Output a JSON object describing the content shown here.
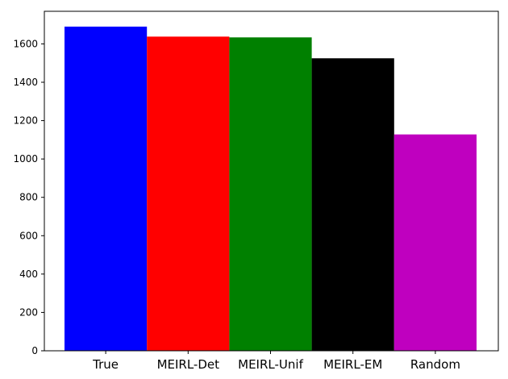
{
  "chart_data": {
    "type": "bar",
    "categories": [
      "True",
      "MEIRL-Det",
      "MEIRL-Unif",
      "MEIRL-EM",
      "Random"
    ],
    "values": [
      1690,
      1638,
      1634,
      1525,
      1128
    ],
    "bar_colors": [
      "#0000ff",
      "#ff0000",
      "#008000",
      "#000000",
      "#bf00bf"
    ],
    "title": "",
    "xlabel": "",
    "ylabel": "",
    "ylim": [
      0,
      1770
    ],
    "yticks": [
      0,
      200,
      400,
      600,
      800,
      1000,
      1200,
      1400,
      1600
    ],
    "grid": false,
    "legend": "none"
  }
}
